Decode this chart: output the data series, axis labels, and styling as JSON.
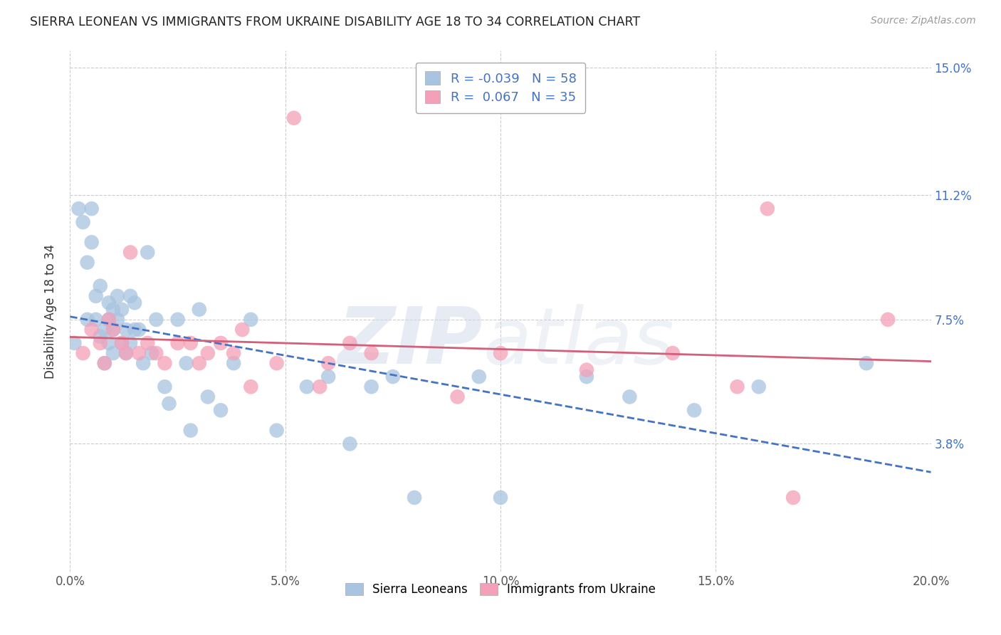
{
  "title": "SIERRA LEONEAN VS IMMIGRANTS FROM UKRAINE DISABILITY AGE 18 TO 34 CORRELATION CHART",
  "source": "Source: ZipAtlas.com",
  "ylabel": "Disability Age 18 to 34",
  "xlim": [
    0.0,
    0.2
  ],
  "ylim": [
    0.0,
    0.155
  ],
  "yticks": [
    0.038,
    0.075,
    0.112,
    0.15
  ],
  "ytick_labels": [
    "3.8%",
    "7.5%",
    "11.2%",
    "15.0%"
  ],
  "xticks": [
    0.0,
    0.05,
    0.1,
    0.15,
    0.2
  ],
  "xtick_labels": [
    "0.0%",
    "5.0%",
    "10.0%",
    "15.0%",
    "20.0%"
  ],
  "grid_color": "#cccccc",
  "background_color": "#ffffff",
  "legend_R1": "-0.039",
  "legend_N1": "58",
  "legend_R2": "0.067",
  "legend_N2": "35",
  "blue_color": "#a8c4e0",
  "pink_color": "#f4a0b8",
  "blue_line_color": "#4472c4",
  "pink_line_color": "#d45f7a",
  "sierra_x": [
    0.001,
    0.002,
    0.003,
    0.004,
    0.004,
    0.005,
    0.005,
    0.006,
    0.006,
    0.007,
    0.007,
    0.008,
    0.008,
    0.009,
    0.009,
    0.009,
    0.01,
    0.01,
    0.01,
    0.011,
    0.011,
    0.012,
    0.012,
    0.013,
    0.013,
    0.014,
    0.014,
    0.015,
    0.015,
    0.016,
    0.017,
    0.018,
    0.019,
    0.02,
    0.022,
    0.023,
    0.025,
    0.027,
    0.028,
    0.03,
    0.032,
    0.035,
    0.038,
    0.042,
    0.048,
    0.055,
    0.06,
    0.065,
    0.07,
    0.075,
    0.08,
    0.095,
    0.1,
    0.12,
    0.13,
    0.145,
    0.16,
    0.185
  ],
  "sierra_y": [
    0.068,
    0.108,
    0.104,
    0.092,
    0.075,
    0.108,
    0.098,
    0.082,
    0.075,
    0.085,
    0.07,
    0.072,
    0.062,
    0.08,
    0.075,
    0.068,
    0.078,
    0.072,
    0.065,
    0.082,
    0.075,
    0.078,
    0.068,
    0.072,
    0.065,
    0.082,
    0.068,
    0.08,
    0.072,
    0.072,
    0.062,
    0.095,
    0.065,
    0.075,
    0.055,
    0.05,
    0.075,
    0.062,
    0.042,
    0.078,
    0.052,
    0.048,
    0.062,
    0.075,
    0.042,
    0.055,
    0.058,
    0.038,
    0.055,
    0.058,
    0.022,
    0.058,
    0.022,
    0.058,
    0.052,
    0.048,
    0.055,
    0.062
  ],
  "ukraine_x": [
    0.003,
    0.005,
    0.007,
    0.008,
    0.009,
    0.01,
    0.012,
    0.013,
    0.014,
    0.016,
    0.018,
    0.02,
    0.022,
    0.025,
    0.028,
    0.03,
    0.032,
    0.035,
    0.038,
    0.04,
    0.042,
    0.048,
    0.052,
    0.058,
    0.06,
    0.065,
    0.07,
    0.09,
    0.1,
    0.12,
    0.14,
    0.155,
    0.162,
    0.168,
    0.19
  ],
  "ukraine_y": [
    0.065,
    0.072,
    0.068,
    0.062,
    0.075,
    0.072,
    0.068,
    0.065,
    0.095,
    0.065,
    0.068,
    0.065,
    0.062,
    0.068,
    0.068,
    0.062,
    0.065,
    0.068,
    0.065,
    0.072,
    0.055,
    0.062,
    0.135,
    0.055,
    0.062,
    0.068,
    0.065,
    0.052,
    0.065,
    0.06,
    0.065,
    0.055,
    0.108,
    0.022,
    0.075
  ]
}
